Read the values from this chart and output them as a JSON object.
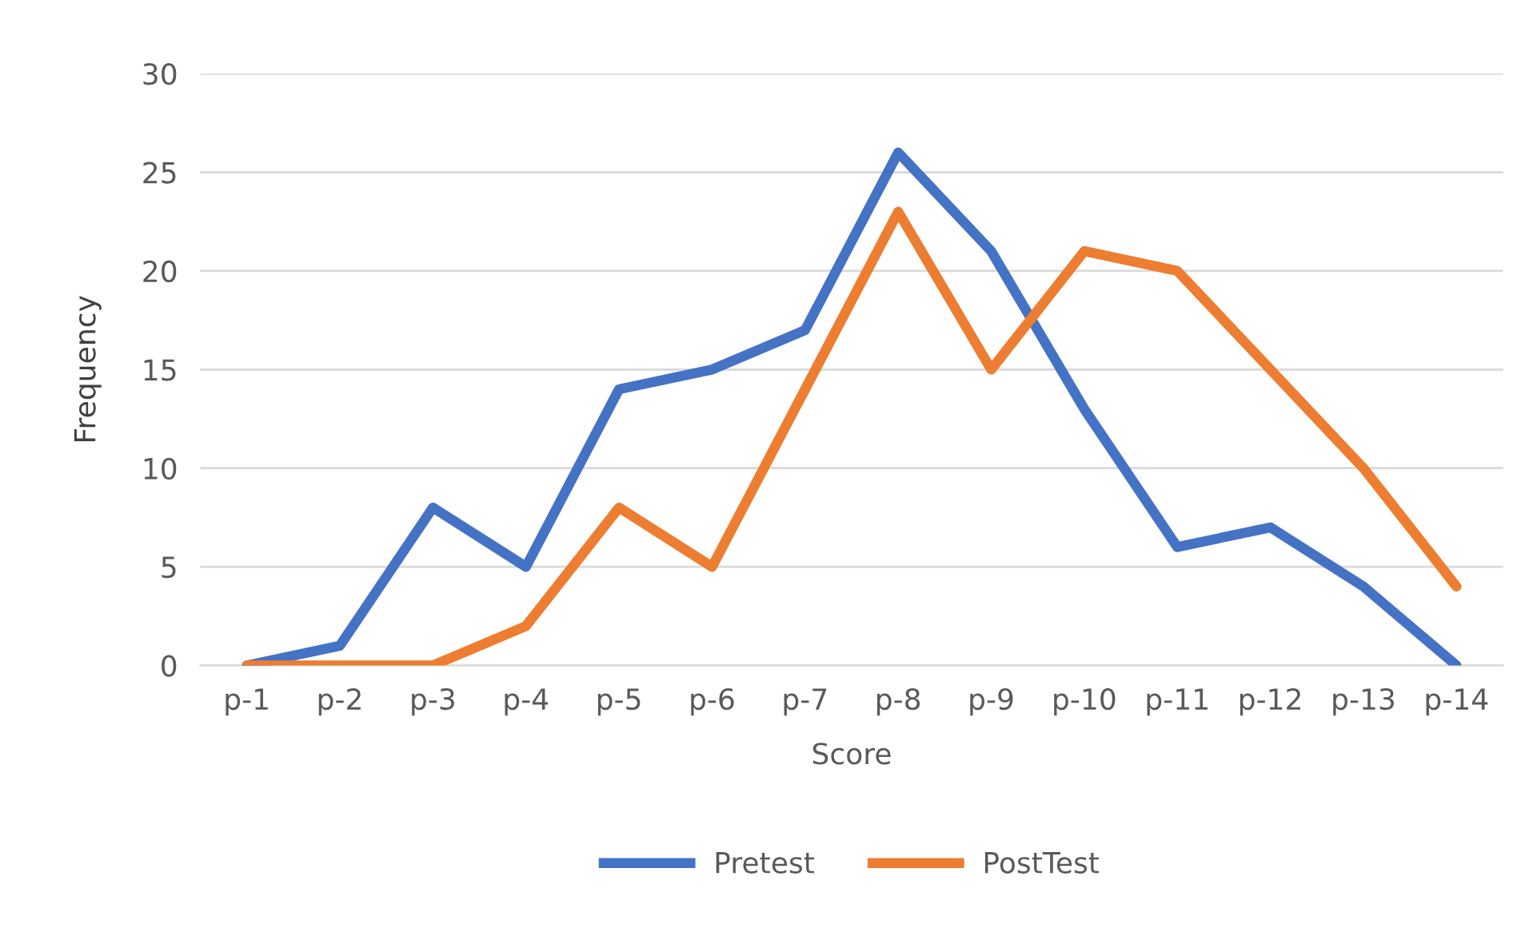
{
  "chart_data": {
    "type": "line",
    "xlabel": "Score",
    "ylabel": "Frequency",
    "categories": [
      "p-1",
      "p-2",
      "p-3",
      "p-4",
      "p-5",
      "p-6",
      "p-7",
      "p-8",
      "p-9",
      "p-10",
      "p-11",
      "p-12",
      "p-13",
      "p-14"
    ],
    "series": [
      {
        "name": "Pretest",
        "color": "#4472c4",
        "values": [
          0,
          1,
          8,
          5,
          14,
          15,
          17,
          26,
          21,
          13,
          6,
          7,
          4,
          0
        ]
      },
      {
        "name": "PostTest",
        "color": "#ed7d31",
        "values": [
          0,
          0,
          0,
          2,
          8,
          5,
          14,
          23,
          15,
          21,
          20,
          15,
          10,
          4
        ]
      }
    ],
    "ylim": [
      0,
      30
    ],
    "yticks": [
      0,
      5,
      10,
      15,
      20,
      25,
      30
    ],
    "grid": "y",
    "legend": "bottom",
    "marker": "none",
    "line_style": "solid"
  }
}
